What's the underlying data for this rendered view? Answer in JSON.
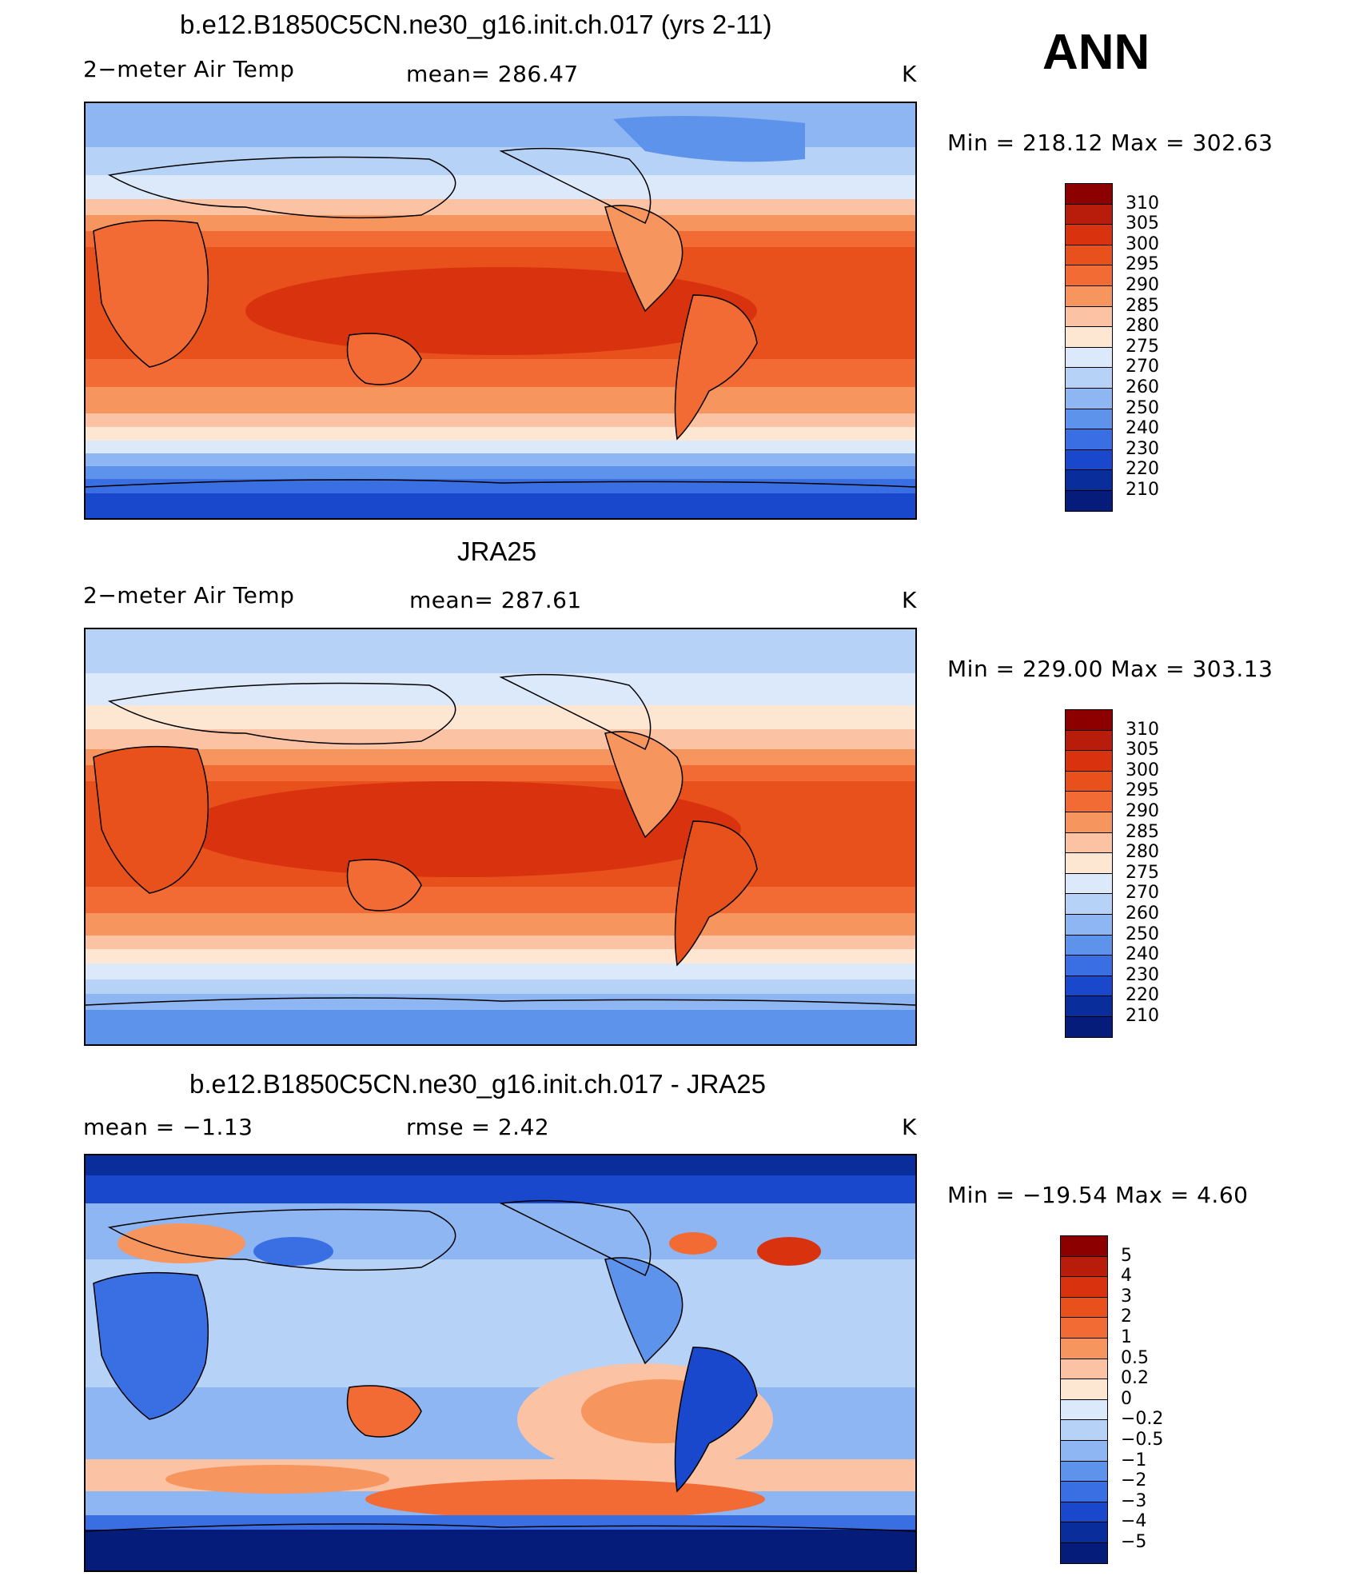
{
  "season": "ANN",
  "panels": [
    {
      "title": "b.e12.B1850C5CN.ne30_g16.init.ch.017 (yrs 2-11)",
      "left_label": "2−meter Air Temp",
      "center_label": "mean=  286.47",
      "units": "K",
      "minmax": "Min  =  218.12  Max  =  302.63"
    },
    {
      "title": "JRA25",
      "left_label": "2−meter Air Temp",
      "center_label": "mean=  287.61",
      "units": "K",
      "minmax": "Min  =  229.00  Max  =  303.13"
    },
    {
      "title": "b.e12.B1850C5CN.ne30_g16.init.ch.017 - JRA25",
      "left_label": "mean  =    −1.13",
      "center_label": "rmse  =     2.42",
      "units": "K",
      "minmax": "Min  =  −19.54  Max  =     4.60"
    }
  ],
  "colorbars": {
    "abs": {
      "labels": [
        "310",
        "305",
        "300",
        "295",
        "290",
        "285",
        "280",
        "275",
        "270",
        "260",
        "250",
        "240",
        "230",
        "220",
        "210"
      ],
      "colors": [
        "#8c0000",
        "#b81d0c",
        "#d9320e",
        "#e8501c",
        "#f26b35",
        "#f7955f",
        "#fbc3a3",
        "#fde7d3",
        "#dbe9fb",
        "#b7d2f7",
        "#8db6f2",
        "#5e93eb",
        "#3a6fe4",
        "#1a48cc",
        "#0a2d9c",
        "#061c7a"
      ]
    },
    "diff": {
      "labels": [
        "5",
        "4",
        "3",
        "2",
        "1",
        "0.5",
        "0.2",
        "0",
        "−0.2",
        "−0.5",
        "−1",
        "−2",
        "−3",
        "−4",
        "−5"
      ],
      "colors": [
        "#8c0000",
        "#b81d0c",
        "#d9320e",
        "#e8501c",
        "#f26b35",
        "#f7955f",
        "#fbc3a3",
        "#fde7d3",
        "#dbe9fb",
        "#b7d2f7",
        "#8db6f2",
        "#5e93eb",
        "#3a6fe4",
        "#1a48cc",
        "#0a2d9c",
        "#061c7a"
      ]
    }
  },
  "chart_data": [
    {
      "type": "heatmap",
      "title": "b.e12.B1850C5CN.ne30_g16.init.ch.017 (yrs 2-11)",
      "variable": "2−meter Air Temp",
      "units": "K",
      "mean": 286.47,
      "min": 218.12,
      "max": 302.63,
      "contour_levels": [
        210,
        220,
        230,
        240,
        250,
        260,
        270,
        275,
        280,
        285,
        290,
        295,
        300,
        305,
        310
      ]
    },
    {
      "type": "heatmap",
      "title": "JRA25",
      "variable": "2−meter Air Temp",
      "units": "K",
      "mean": 287.61,
      "min": 229.0,
      "max": 303.13,
      "contour_levels": [
        210,
        220,
        230,
        240,
        250,
        260,
        270,
        275,
        280,
        285,
        290,
        295,
        300,
        305,
        310
      ]
    },
    {
      "type": "heatmap",
      "title": "b.e12.B1850C5CN.ne30_g16.init.ch.017 - JRA25",
      "units": "K",
      "mean": -1.13,
      "rmse": 2.42,
      "min": -19.54,
      "max": 4.6,
      "contour_levels": [
        -5,
        -4,
        -3,
        -2,
        -1,
        -0.5,
        -0.2,
        0,
        0.2,
        0.5,
        1,
        2,
        3,
        4,
        5
      ]
    }
  ]
}
